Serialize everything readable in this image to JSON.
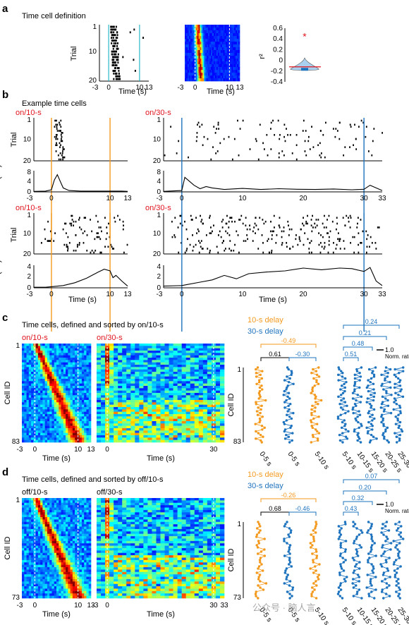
{
  "panel_a": {
    "letter": "a",
    "title": "Time cell definition",
    "raster_ylabel": "Trial",
    "raster_yticks": [
      "1",
      "10",
      "20"
    ],
    "xticks": [
      "-3",
      "0",
      "10",
      "13"
    ],
    "xlabel": "Time (s)",
    "violin_ylabel": "r²",
    "violin_yticks": [
      "0.6",
      "0.4",
      "0.2",
      "0",
      "-0.2",
      "-0.4"
    ],
    "star": "*"
  },
  "panel_b": {
    "letter": "b",
    "title": "Example time cells",
    "labels": [
      "on/10-s",
      "on/30-s",
      "on/10-s",
      "on/30-s"
    ],
    "trial_label": "Trial",
    "rate_label": "Rate (Hz)",
    "trial_ticks": [
      "1",
      "10",
      "20"
    ],
    "rate_ticks_top": [
      "8",
      "4",
      "0"
    ],
    "rate_ticks_bottom": [
      "4",
      "2",
      "0"
    ],
    "x10": [
      "-3",
      "0",
      "10",
      "13"
    ],
    "x30": [
      "-3",
      "0",
      "10",
      "20",
      "30",
      "33"
    ],
    "xlabel": "Time (s)"
  },
  "panel_c": {
    "letter": "c",
    "title": "Time cells, defined and sorted by on/10-s",
    "heat_labels": [
      "on/10-s",
      "on/30-s"
    ],
    "ylabel": "Cell ID",
    "yticks": [
      "1",
      "83"
    ],
    "x10": [
      "-3",
      "0",
      "10",
      "13"
    ],
    "x30": [
      "0",
      "30"
    ],
    "xlabel": "Time (s)",
    "legend": [
      "10-s delay",
      "30-s delay"
    ],
    "scale_label": "1.0",
    "scale_sub": "Norm. rate",
    "corr": [
      "0.24",
      "0.21",
      "0.48",
      "0.51",
      "0.61",
      "-0.30",
      "-0.49"
    ],
    "bins": [
      "0-5 s",
      "0-5 s",
      "5-10 s",
      "5-10 s",
      "10-15 s",
      "15-20 s",
      "20-25 s",
      "25-30 s"
    ]
  },
  "panel_d": {
    "letter": "d",
    "title": "Time cells, defined and sorted by off/10-s",
    "heat_labels": [
      "off/10-s",
      "off/30-s"
    ],
    "ylabel": "Cell ID",
    "yticks": [
      "1",
      "73"
    ],
    "x10": [
      "-3",
      "0",
      "10",
      "13"
    ],
    "x30": [
      "-3",
      "0",
      "30",
      "33"
    ],
    "xlabel": "Time (s)",
    "legend": [
      "10-s delay",
      "30-s delay"
    ],
    "scale_label": "1.0",
    "scale_sub": "Norm. rate",
    "corr": [
      "0.07",
      "0.20",
      "0.32",
      "0.43",
      "0.68",
      "-0.46",
      "-0.26"
    ],
    "bins": [
      "0-5 s",
      "0-5 s",
      "5-10 s",
      "5-10 s",
      "10-15 s",
      "15-20 s",
      "20-25 s",
      "25-30 s"
    ]
  },
  "watermark": "公众号 · 脑人言",
  "colors": {
    "orange": "#f39a1e",
    "blue": "#1e73be",
    "red": "#e0141e",
    "cyan": "#2ab7c9"
  },
  "chart_data": [
    {
      "type": "line",
      "panel": "b-top-left",
      "ylabel": "Rate (Hz)",
      "xlim": [
        -3,
        13
      ],
      "ylim": [
        0,
        8
      ],
      "x": [
        -3,
        -1,
        0,
        0.5,
        1,
        1.5,
        2,
        3,
        5,
        8,
        10,
        12,
        13
      ],
      "y": [
        0.2,
        0.3,
        0.8,
        4.5,
        6.5,
        4,
        1.5,
        0.5,
        0.3,
        0.3,
        0.3,
        0.3,
        0.2
      ]
    },
    {
      "type": "line",
      "panel": "b-top-right",
      "ylabel": "Rate (Hz)",
      "xlim": [
        -3,
        33
      ],
      "ylim": [
        0,
        8
      ],
      "x": [
        -3,
        0,
        0.5,
        1,
        2,
        3,
        4,
        5,
        7,
        10,
        13,
        16,
        19,
        22,
        25,
        28,
        30,
        31,
        33
      ],
      "y": [
        0.2,
        0.5,
        5.5,
        4.5,
        2.5,
        1.2,
        2,
        1.5,
        0.9,
        1.3,
        0.9,
        1.2,
        1,
        0.9,
        1.1,
        0.8,
        1,
        2.5,
        0.5
      ]
    },
    {
      "type": "line",
      "panel": "b-bottom-left",
      "ylabel": "Rate (Hz)",
      "xlim": [
        -3,
        13
      ],
      "ylim": [
        0,
        4
      ],
      "x": [
        -3,
        -1,
        0,
        2,
        4,
        6,
        8,
        9,
        10,
        10.5,
        11,
        12,
        13
      ],
      "y": [
        0.1,
        0.1,
        0.2,
        0.4,
        0.9,
        1.7,
        2.8,
        3.3,
        3.0,
        1.8,
        2.2,
        1.2,
        0.3
      ]
    },
    {
      "type": "line",
      "panel": "b-bottom-right",
      "ylabel": "Rate (Hz)",
      "xlim": [
        -3,
        33
      ],
      "ylim": [
        0,
        4
      ],
      "x": [
        -3,
        0,
        1,
        3,
        5,
        7,
        9,
        11,
        14,
        17,
        20,
        23,
        26,
        28,
        30,
        31,
        32,
        33
      ],
      "y": [
        0.3,
        0.4,
        0.6,
        1.0,
        1.4,
        2.2,
        1.6,
        2.5,
        2.8,
        3.0,
        3.5,
        3.2,
        3.5,
        3.4,
        2.9,
        3.6,
        1.2,
        0.4
      ]
    }
  ]
}
